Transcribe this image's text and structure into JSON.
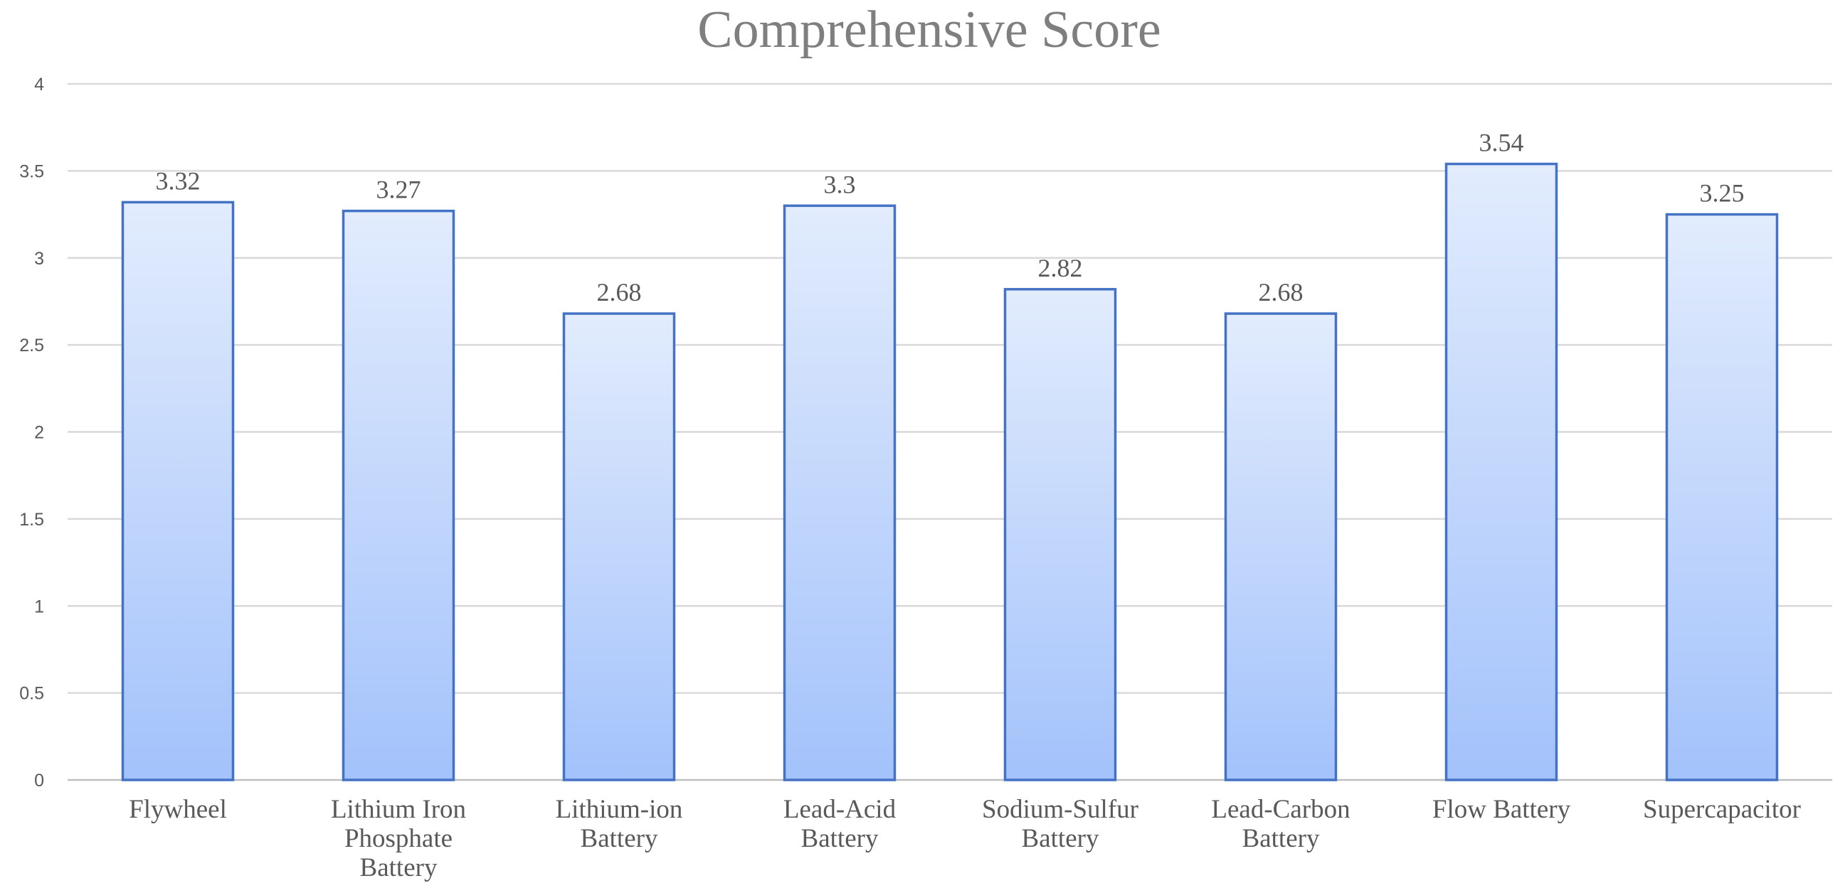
{
  "chart_data": {
    "type": "bar",
    "title": "Comprehensive Score",
    "xlabel": "",
    "ylabel": "",
    "ylim": [
      0,
      4
    ],
    "yticks": [
      "0",
      "0.5",
      "1",
      "1.5",
      "2",
      "2.5",
      "3",
      "3.5",
      "4"
    ],
    "categories": [
      [
        "Flywheel"
      ],
      [
        "Lithium Iron",
        "Phosphate",
        "Battery"
      ],
      [
        "Lithium-ion",
        "Battery"
      ],
      [
        "Lead-Acid",
        "Battery"
      ],
      [
        "Sodium-Sulfur",
        "Battery"
      ],
      [
        "Lead-Carbon",
        "Battery"
      ],
      [
        "Flow Battery"
      ],
      [
        "Supercapacitor"
      ]
    ],
    "values": [
      3.32,
      3.27,
      2.68,
      3.3,
      2.82,
      2.68,
      3.54,
      3.25
    ],
    "data_labels": [
      "3.32",
      "3.27",
      "2.68",
      "3.3",
      "2.82",
      "2.68",
      "3.54",
      "3.25"
    ],
    "grid": true,
    "legend": "none",
    "colors": {
      "bar_top": "#e2ecfd",
      "bar_bottom": "#a3c2fb",
      "bar_edge": "#4472c4"
    }
  }
}
